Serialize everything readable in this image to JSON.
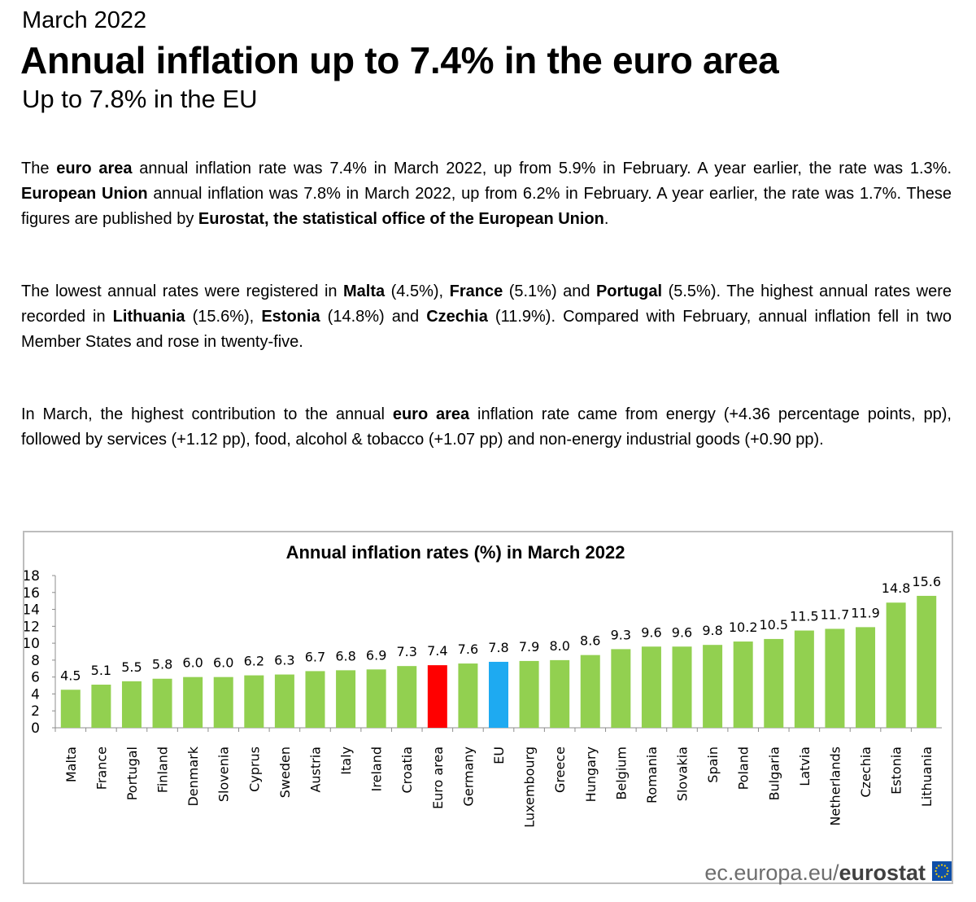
{
  "header": {
    "date": "March 2022",
    "headline": "Annual inflation up to 7.4% in the euro area",
    "subheadline": "Up to 7.8% in the EU"
  },
  "paragraphs": {
    "p1": [
      {
        "t": "The ",
        "b": false
      },
      {
        "t": "euro area",
        "b": true
      },
      {
        "t": " annual inflation rate was 7.4% in March 2022, up from 5.9% in February. A year earlier, the rate was 1.3%. ",
        "b": false
      },
      {
        "t": "European Union",
        "b": true
      },
      {
        "t": " annual inflation was 7.8% in March 2022, up from 6.2% in February. A year earlier, the rate was 1.7%. These figures are published by ",
        "b": false
      },
      {
        "t": "Eurostat, the statistical office of the European Union",
        "b": true
      },
      {
        "t": ".",
        "b": false
      }
    ],
    "p2": [
      {
        "t": "The lowest annual rates were registered in ",
        "b": false
      },
      {
        "t": "Malta",
        "b": true
      },
      {
        "t": " (4.5%), ",
        "b": false
      },
      {
        "t": "France",
        "b": true
      },
      {
        "t": " (5.1%) and ",
        "b": false
      },
      {
        "t": "Portugal",
        "b": true
      },
      {
        "t": " (5.5%). The highest annual rates were recorded in ",
        "b": false
      },
      {
        "t": "Lithuania",
        "b": true
      },
      {
        "t": " (15.6%), ",
        "b": false
      },
      {
        "t": "Estonia",
        "b": true
      },
      {
        "t": " (14.8%) and ",
        "b": false
      },
      {
        "t": "Czechia",
        "b": true
      },
      {
        "t": " (11.9%). Compared with February, annual inflation fell in two Member States and rose in twenty-five.",
        "b": false
      }
    ],
    "p3": [
      {
        "t": "In March, the highest contribution to the annual ",
        "b": false
      },
      {
        "t": "euro area",
        "b": true
      },
      {
        "t": " inflation rate came from energy (+4.36 percentage points, pp), followed by services (+1.12 pp), food, alcohol & tobacco (+1.07 pp) and non-energy industrial goods (+0.90 pp).",
        "b": false
      }
    ]
  },
  "chart_data": {
    "type": "bar",
    "title": "Annual inflation rates (%) in March 2022",
    "xlabel": "",
    "ylabel": "",
    "ylim": [
      0,
      18
    ],
    "yticks": [
      0,
      2,
      4,
      6,
      8,
      10,
      12,
      14,
      16,
      18
    ],
    "grid": false,
    "categories": [
      "Malta",
      "France",
      "Portugal",
      "Finland",
      "Denmark",
      "Slovenia",
      "Cyprus",
      "Sweden",
      "Austria",
      "Italy",
      "Ireland",
      "Croatia",
      "Euro area",
      "Germany",
      "EU",
      "Luxembourg",
      "Greece",
      "Hungary",
      "Belgium",
      "Romania",
      "Slovakia",
      "Spain",
      "Poland",
      "Bulgaria",
      "Latvia",
      "Netherlands",
      "Czechia",
      "Estonia",
      "Lithuania"
    ],
    "values": [
      4.5,
      5.1,
      5.5,
      5.8,
      6.0,
      6.0,
      6.2,
      6.3,
      6.7,
      6.8,
      6.9,
      7.3,
      7.4,
      7.6,
      7.8,
      7.9,
      8.0,
      8.6,
      9.3,
      9.6,
      9.6,
      9.8,
      10.2,
      10.5,
      11.5,
      11.7,
      11.9,
      14.8,
      15.6
    ],
    "value_labels": [
      "4.5",
      "5.1",
      "5.5",
      "5.8",
      "6.0",
      "6.0",
      "6.2",
      "6.3",
      "6.7",
      "6.8",
      "6.9",
      "7.3",
      "7.4",
      "7.6",
      "7.8",
      "7.9",
      "8.0",
      "8.6",
      "9.3",
      "9.6",
      "9.6",
      "9.8",
      "10.2",
      "10.5",
      "11.5",
      "11.7",
      "11.9",
      "14.8",
      "15.6"
    ],
    "colors": {
      "default": "#92d050",
      "Euro area": "#ff0000",
      "EU": "#1eaaf1"
    }
  },
  "footer": {
    "site": "ec.europa.eu/",
    "brand": "eurostat",
    "logo": "eu-flag-icon"
  }
}
